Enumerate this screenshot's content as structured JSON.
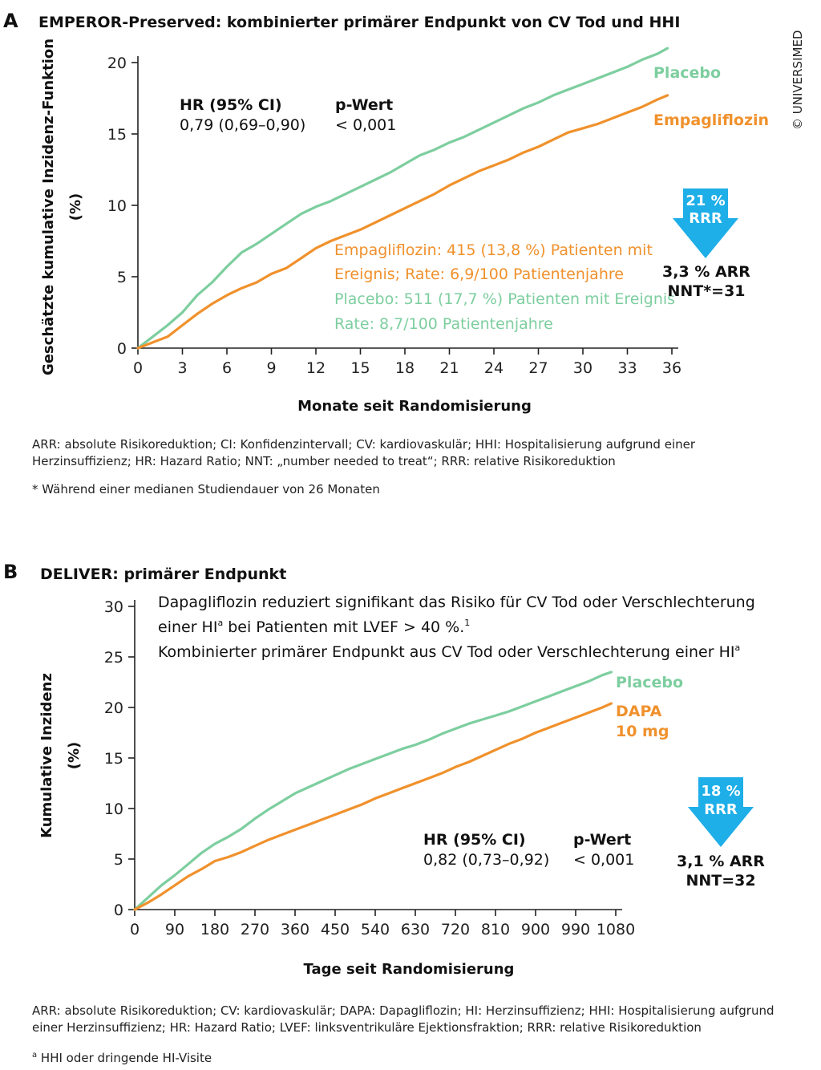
{
  "copyright": "© UNIVERSIMED",
  "colors": {
    "placebo": "#7dce9f",
    "treatment": "#f0912c",
    "arrow": "#1eaee8"
  },
  "panel_a": {
    "letter": "A",
    "title": "EMPEROR-Preserved: kombinierter primärer Endpunkt von CV Tod und HHI",
    "ylabel_line1": "Geschätzte kumulative Inzidenz-Funktion",
    "ylabel_line2": "(%)",
    "xlabel": "Monate seit Randomisierung",
    "stats": {
      "hr_head": "HR (95% CI)",
      "hr_value": "0,79 (0,69–0,90)",
      "p_head": "p-Wert",
      "p_value": "< 0,001"
    },
    "legend": {
      "placebo": "Placebo",
      "treatment": "Empagliflozin"
    },
    "annotations": {
      "treatment_line1": "Empagliflozin: 415 (13,8 %) Patienten mit",
      "treatment_line2": "Ereignis; Rate: 6,9/100 Patientenjahre",
      "placebo_line1": "Placebo: 511 (17,7 %) Patienten mit Ereignis",
      "placebo_line2": "Rate: 8,7/100 Patientenjahre"
    },
    "arrow": {
      "line1": "21 %",
      "line2": "RRR"
    },
    "effect": {
      "line1": "3,3 % ARR",
      "line2": "NNT*=31"
    },
    "footnote_abbrev": "ARR: absolute Risikoreduktion; CI: Konfidenzintervall; CV: kardiovaskulär; HHI: Hospitalisierung aufgrund einer Herzinsuffizienz; HR: Hazard Ratio; NNT: „number needed to treat“; RRR: relative Risikoreduktion",
    "footnote_star": "* Während einer medianen Studiendauer von 26 Monaten"
  },
  "panel_b": {
    "letter": "B",
    "title": "DELIVER: primärer Endpunkt",
    "ylabel_line1": "Kumulative Inzidenz",
    "ylabel_line2": "(%)",
    "xlabel": "Tage seit Randomisierung",
    "description_line1": "Dapagliflozin reduziert signifikant das Risiko für CV Tod oder Verschlechterung",
    "description_line2_pre": "einer HI",
    "description_line2_sup": "a",
    "description_line2_post": " bei Patienten mit LVEF > 40 %.",
    "description_line2_ref": "1",
    "description_line3": "Kombinierter primärer Endpunkt aus CV Tod oder Verschlechterung einer HI",
    "description_line3_sup": "a",
    "stats": {
      "hr_head": "HR (95% CI)",
      "hr_value": "0,82 (0,73–0,92)",
      "p_head": "p-Wert",
      "p_value": "< 0,001"
    },
    "legend": {
      "placebo": "Placebo",
      "treatment_line1": "DAPA",
      "treatment_line2": "10 mg"
    },
    "arrow": {
      "line1": "18 %",
      "line2": "RRR"
    },
    "effect": {
      "line1": "3,1 % ARR",
      "line2": "NNT=32"
    },
    "footnote_abbrev": "ARR: absolute Risikoreduktion; CV: kardiovaskulär; DAPA: Dapagliflozin; HI: Herzinsuffizienz; HHI: Hospitalisierung aufgrund einer Herzinsuffizienz; HR: Hazard Ratio; LVEF: linksventrikuläre Ejektionsfraktion; RRR: relative Risikoreduktion",
    "footnote_a_mark": "a",
    "footnote_a": " HHI oder dringende HI-Visite"
  },
  "chart_data": [
    {
      "type": "line",
      "title": "EMPEROR-Preserved: kombinierter primärer Endpunkt von CV Tod und HHI",
      "xlabel": "Monate seit Randomisierung",
      "ylabel": "Geschätzte kumulative Inzidenz-Funktion (%)",
      "xlim": [
        0,
        36
      ],
      "ylim": [
        0,
        20
      ],
      "xticks": [
        0,
        3,
        6,
        9,
        12,
        15,
        18,
        21,
        24,
        27,
        30,
        33,
        36
      ],
      "yticks": [
        0,
        5,
        10,
        15,
        20
      ],
      "legend_position": "right",
      "series": [
        {
          "name": "Placebo",
          "color": "#7dce9f",
          "x": [
            0,
            1,
            2,
            3,
            4,
            5,
            6,
            7,
            8,
            9,
            10,
            11,
            12,
            13,
            14,
            15,
            16,
            17,
            18,
            19,
            20,
            21,
            22,
            23,
            24,
            25,
            26,
            27,
            28,
            29,
            30,
            31,
            32,
            33,
            34,
            35,
            35.7
          ],
          "y": [
            0,
            0.8,
            1.6,
            2.5,
            3.7,
            4.6,
            5.7,
            6.7,
            7.3,
            8.0,
            8.7,
            9.4,
            9.9,
            10.3,
            10.8,
            11.3,
            11.8,
            12.3,
            12.9,
            13.5,
            13.9,
            14.4,
            14.8,
            15.3,
            15.8,
            16.3,
            16.8,
            17.2,
            17.7,
            18.1,
            18.5,
            18.9,
            19.3,
            19.7,
            20.2,
            20.6,
            21.0
          ]
        },
        {
          "name": "Empagliflozin",
          "color": "#f0912c",
          "x": [
            0,
            1,
            2,
            3,
            4,
            5,
            6,
            7,
            8,
            9,
            10,
            11,
            12,
            13,
            14,
            15,
            16,
            17,
            18,
            19,
            20,
            21,
            22,
            23,
            24,
            25,
            26,
            27,
            28,
            29,
            30,
            31,
            32,
            33,
            34,
            35,
            35.7
          ],
          "y": [
            0,
            0.4,
            0.8,
            1.6,
            2.4,
            3.1,
            3.7,
            4.2,
            4.6,
            5.2,
            5.6,
            6.3,
            7.0,
            7.5,
            7.9,
            8.3,
            8.8,
            9.3,
            9.8,
            10.3,
            10.8,
            11.4,
            11.9,
            12.4,
            12.8,
            13.2,
            13.7,
            14.1,
            14.6,
            15.1,
            15.4,
            15.7,
            16.1,
            16.5,
            16.9,
            17.4,
            17.7
          ]
        }
      ]
    },
    {
      "type": "line",
      "title": "DELIVER: primärer Endpunkt",
      "xlabel": "Tage seit Randomisierung",
      "ylabel": "Kumulative Inzidenz (%)",
      "xlim": [
        0,
        1080
      ],
      "ylim": [
        0,
        30
      ],
      "xticks": [
        0,
        90,
        180,
        270,
        360,
        450,
        540,
        630,
        720,
        810,
        900,
        990,
        1080
      ],
      "yticks": [
        0,
        5,
        10,
        15,
        20,
        25,
        30
      ],
      "legend_position": "right",
      "series": [
        {
          "name": "Placebo",
          "color": "#7dce9f",
          "x": [
            0,
            30,
            60,
            90,
            120,
            150,
            180,
            210,
            240,
            270,
            300,
            330,
            360,
            390,
            420,
            450,
            480,
            510,
            540,
            570,
            600,
            630,
            660,
            690,
            720,
            750,
            780,
            810,
            840,
            870,
            900,
            930,
            960,
            990,
            1020,
            1050,
            1070
          ],
          "y": [
            0,
            1.2,
            2.4,
            3.4,
            4.5,
            5.6,
            6.5,
            7.2,
            8.0,
            9.0,
            9.9,
            10.7,
            11.5,
            12.1,
            12.7,
            13.3,
            13.9,
            14.4,
            14.9,
            15.4,
            15.9,
            16.3,
            16.8,
            17.4,
            17.9,
            18.4,
            18.8,
            19.2,
            19.6,
            20.1,
            20.6,
            21.1,
            21.6,
            22.1,
            22.6,
            23.2,
            23.5
          ]
        },
        {
          "name": "DAPA 10 mg",
          "color": "#f0912c",
          "x": [
            0,
            30,
            60,
            90,
            120,
            150,
            180,
            210,
            240,
            270,
            300,
            330,
            360,
            390,
            420,
            450,
            480,
            510,
            540,
            570,
            600,
            630,
            660,
            690,
            720,
            750,
            780,
            810,
            840,
            870,
            900,
            930,
            960,
            990,
            1020,
            1050,
            1070
          ],
          "y": [
            0,
            0.7,
            1.5,
            2.4,
            3.3,
            4.0,
            4.8,
            5.2,
            5.7,
            6.3,
            6.9,
            7.4,
            7.9,
            8.4,
            8.9,
            9.4,
            9.9,
            10.4,
            11.0,
            11.5,
            12.0,
            12.5,
            13.0,
            13.5,
            14.1,
            14.6,
            15.2,
            15.8,
            16.4,
            16.9,
            17.5,
            18.0,
            18.5,
            19.0,
            19.5,
            20.0,
            20.4
          ]
        }
      ]
    }
  ]
}
